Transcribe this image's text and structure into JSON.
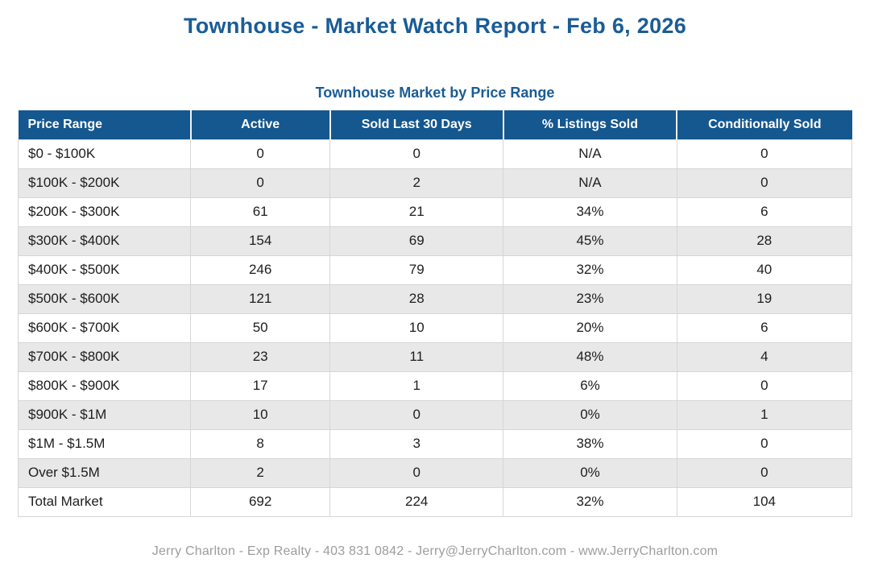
{
  "page": {
    "title": "Townhouse - Market Watch Report - Feb 6, 2026",
    "footer": "Jerry Charlton - Exp Realty - 403 831 0842 - Jerry@JerryCharlton.com - www.JerryCharlton.com"
  },
  "colors": {
    "accent_blue_header": "#15578f",
    "title_blue": "#1a5c96",
    "row_stripe_gray": "#e8e8e8",
    "gridline_gray": "#d6d6d6",
    "footer_gray": "#9d9d9d"
  },
  "chart_data": {
    "type": "table",
    "title": "Townhouse Market by Price Range",
    "columns": [
      "Price Range",
      "Active",
      "Sold Last 30 Days",
      "% Listings Sold",
      "Conditionally Sold"
    ],
    "rows": [
      [
        "$0 - $100K",
        "0",
        "0",
        "N/A",
        "0"
      ],
      [
        "$100K - $200K",
        "0",
        "2",
        "N/A",
        "0"
      ],
      [
        "$200K - $300K",
        "61",
        "21",
        "34%",
        "6"
      ],
      [
        "$300K - $400K",
        "154",
        "69",
        "45%",
        "28"
      ],
      [
        "$400K - $500K",
        "246",
        "79",
        "32%",
        "40"
      ],
      [
        "$500K - $600K",
        "121",
        "28",
        "23%",
        "19"
      ],
      [
        "$600K - $700K",
        "50",
        "10",
        "20%",
        "6"
      ],
      [
        "$700K - $800K",
        "23",
        "11",
        "48%",
        "4"
      ],
      [
        "$800K - $900K",
        "17",
        "1",
        "6%",
        "0"
      ],
      [
        "$900K - $1M",
        "10",
        "0",
        "0%",
        "1"
      ],
      [
        "$1M - $1.5M",
        "8",
        "3",
        "38%",
        "0"
      ],
      [
        "Over $1.5M",
        "2",
        "0",
        "0%",
        "0"
      ],
      [
        "Total Market",
        "692",
        "224",
        "32%",
        "104"
      ]
    ]
  }
}
